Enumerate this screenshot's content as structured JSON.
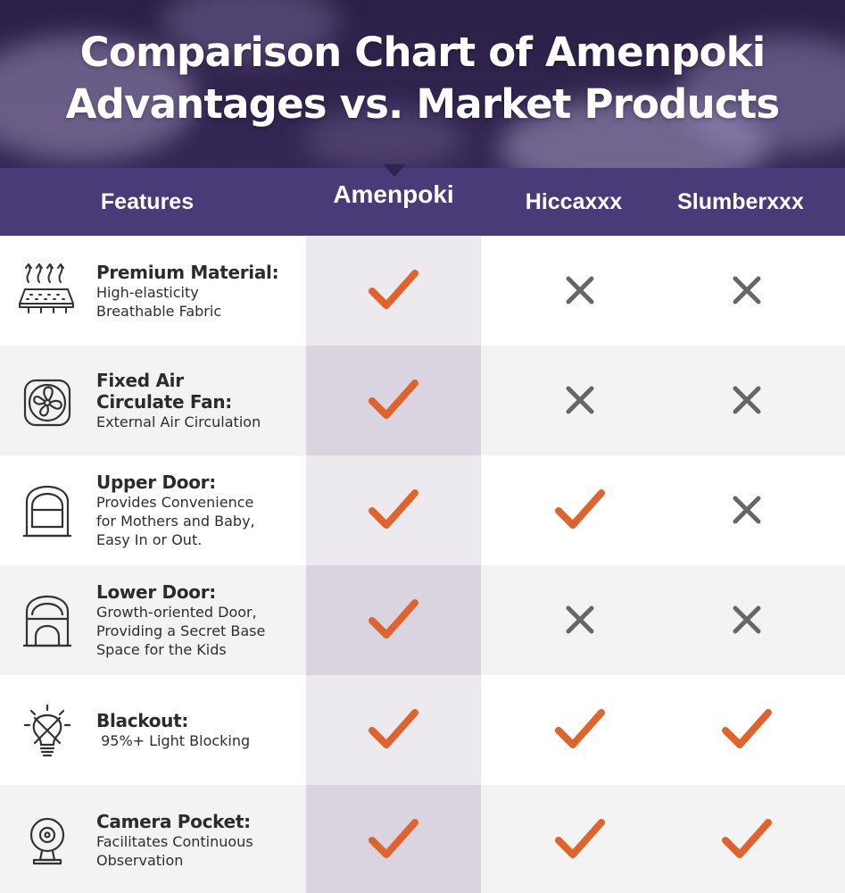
{
  "title": {
    "line1": "Comparison Chart of Amenpoki",
    "line2": "Advantages vs. Market Products"
  },
  "colors": {
    "banner": "#2b2046",
    "header": "#4a3a78",
    "check": "#e0622d",
    "cross": "#666666"
  },
  "chart_data": {
    "type": "table",
    "columns": [
      "Features",
      "Amenpoki",
      "Hiccaxxx",
      "Slumberxxx"
    ],
    "rows": [
      {
        "icon": "breathable-fabric-icon",
        "name": "Premium Material:",
        "desc": "High-elasticity\nBreathable Fabric",
        "values": [
          "check",
          "cross",
          "cross"
        ]
      },
      {
        "icon": "fan-icon",
        "name": "Fixed Air\nCirculate Fan:",
        "desc": "External Air Circulation",
        "values": [
          "check",
          "cross",
          "cross"
        ]
      },
      {
        "icon": "upper-door-tent-icon",
        "name": "Upper Door:",
        "desc": "Provides Convenience\nfor Mothers and Baby,\nEasy In or Out.",
        "values": [
          "check",
          "check",
          "cross"
        ]
      },
      {
        "icon": "lower-door-tent-icon",
        "name": "Lower Door:",
        "desc": "Growth-oriented Door,\nProviding a Secret Base\nSpace for the Kids",
        "values": [
          "check",
          "cross",
          "cross"
        ]
      },
      {
        "icon": "no-light-bulb-icon",
        "name": "Blackout:",
        "desc": " 95%+ Light Blocking",
        "values": [
          "check",
          "check",
          "check"
        ]
      },
      {
        "icon": "camera-icon",
        "name": "Camera Pocket:",
        "desc": "Facilitates Continuous\nObservation",
        "values": [
          "check",
          "check",
          "check"
        ]
      }
    ]
  }
}
